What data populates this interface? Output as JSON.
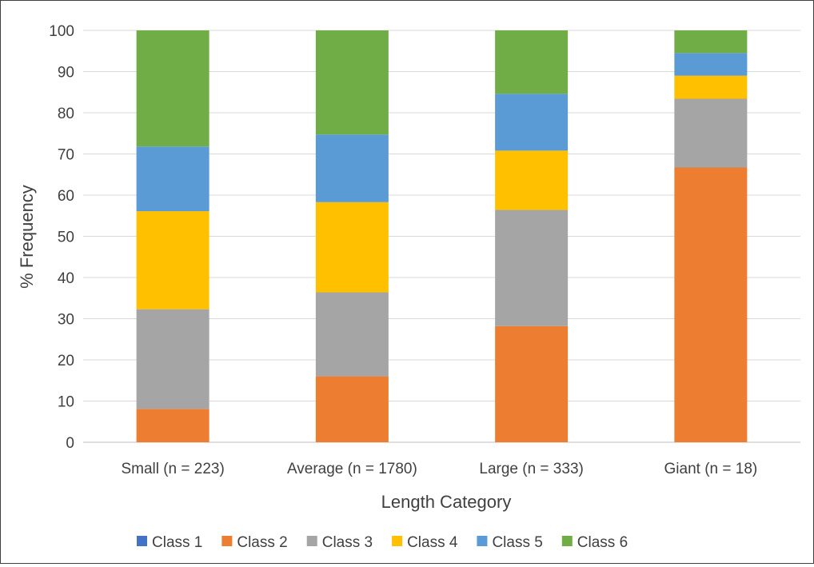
{
  "chart_data": {
    "type": "bar",
    "stacked": true,
    "xlabel": "Length Category",
    "ylabel": "% Frequency",
    "ylim": [
      0,
      100
    ],
    "yticks": [
      0,
      10,
      20,
      30,
      40,
      50,
      60,
      70,
      80,
      90,
      100
    ],
    "grid": true,
    "legend_position": "bottom",
    "categories": [
      "Small (n = 223)",
      "Average (n = 1780)",
      "Large (n = 333)",
      "Giant (n = 18)"
    ],
    "series": [
      {
        "name": "Class 1",
        "color": "#4472C4",
        "values": [
          0,
          0,
          0,
          0
        ]
      },
      {
        "name": "Class 2",
        "color": "#ED7D31",
        "values": [
          8.1,
          16.0,
          28.2,
          66.7
        ]
      },
      {
        "name": "Class 3",
        "color": "#A5A5A5",
        "values": [
          24.2,
          20.4,
          28.2,
          16.7
        ]
      },
      {
        "name": "Class 4",
        "color": "#FFC000",
        "values": [
          23.8,
          21.9,
          14.4,
          5.6
        ]
      },
      {
        "name": "Class 5",
        "color": "#5B9BD5",
        "values": [
          15.7,
          16.4,
          13.8,
          5.5
        ]
      },
      {
        "name": "Class 6",
        "color": "#70AD47",
        "values": [
          28.2,
          25.3,
          15.4,
          5.5
        ]
      }
    ]
  }
}
